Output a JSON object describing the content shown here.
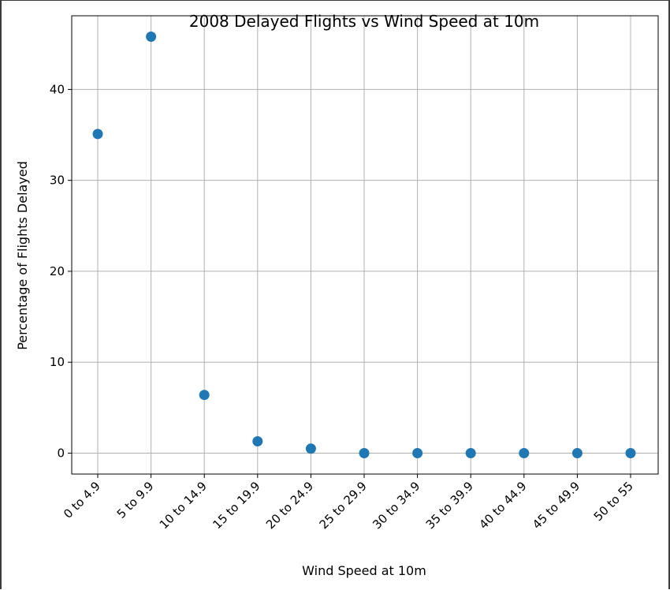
{
  "chart_data": {
    "type": "scatter",
    "title": "2008 Delayed Flights vs Wind Speed at 10m",
    "xlabel": "Wind Speed at 10m",
    "ylabel": "Percentage of Flights Delayed",
    "categories": [
      "0 to 4.9",
      "5 to 9.9",
      "10 to 14.9",
      "15 to 19.9",
      "20 to 24.9",
      "25 to 29.9",
      "30 to 34.9",
      "35 to 39.9",
      "40 to 44.9",
      "45 to 49.9",
      "50 to 55"
    ],
    "values": [
      35.1,
      45.8,
      6.4,
      1.3,
      0.5,
      0.0,
      0.0,
      0.0,
      0.0,
      0.0,
      0.0
    ],
    "yticks": [
      0,
      10,
      20,
      30,
      40
    ],
    "ylim": [
      -2.3,
      48.1
    ],
    "grid": true,
    "marker_color": "#1f77b4"
  }
}
